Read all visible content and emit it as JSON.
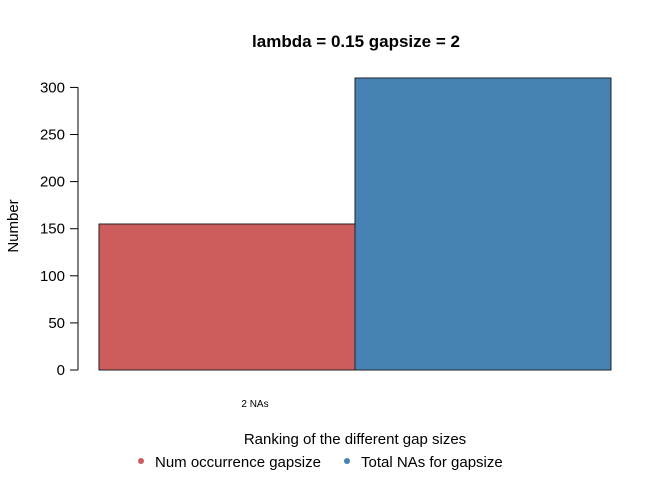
{
  "chart_data": {
    "type": "bar",
    "title": "lambda = 0.15  gapsize = 2",
    "xlabel": "Ranking of the different gap sizes",
    "ylabel": "Number",
    "categories": [
      "2 NAs"
    ],
    "series": [
      {
        "name": "Num occurrence gapsize",
        "values": [
          155
        ],
        "color": "#CD5C5C"
      },
      {
        "name": "Total NAs for gapsize",
        "values": [
          310
        ],
        "color": "#4682B4"
      }
    ],
    "ylim": [
      0,
      310
    ],
    "yticks": [
      "0",
      "50",
      "100",
      "150",
      "200",
      "250",
      "300"
    ],
    "legend_position": "bottom",
    "grid": false
  }
}
